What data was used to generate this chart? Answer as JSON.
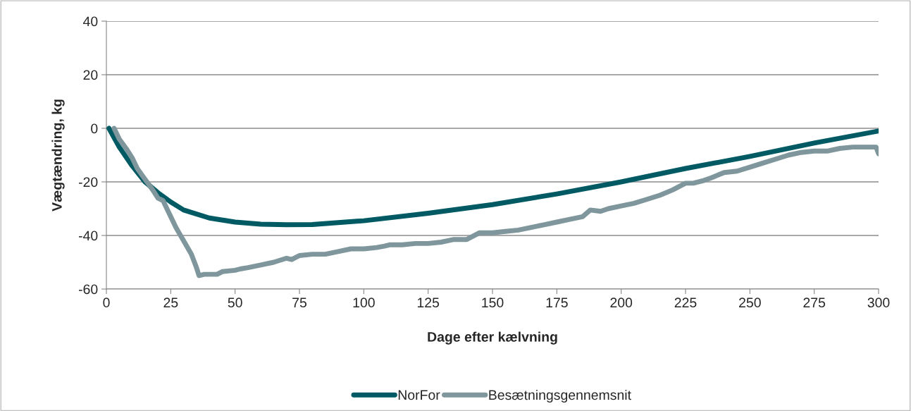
{
  "chart_data": {
    "type": "line",
    "xlabel": "Dage efter kælvning",
    "ylabel": "Vægtændring, kg",
    "xlim": [
      0,
      300
    ],
    "xticks": [
      0,
      25,
      50,
      75,
      100,
      125,
      150,
      175,
      200,
      225,
      250,
      275,
      300
    ],
    "ylim": [
      -60,
      40
    ],
    "yticks": [
      -60,
      -40,
      -20,
      0,
      20,
      40
    ],
    "grid": "y",
    "legend": "bottom",
    "marker": "none",
    "line_style": "solid",
    "series": [
      {
        "name": "NorFor",
        "color": "#005a64",
        "x": [
          1,
          5,
          10,
          15,
          20,
          25,
          30,
          40,
          50,
          60,
          70,
          80,
          100,
          125,
          150,
          175,
          200,
          225,
          250,
          275,
          300
        ],
        "values": [
          0,
          -7,
          -14,
          -20,
          -24,
          -27.5,
          -30.5,
          -33.5,
          -35,
          -35.8,
          -36,
          -35.9,
          -34.5,
          -31.7,
          -28.5,
          -24.5,
          -20,
          -15,
          -10.5,
          -5.5,
          -1
        ]
      },
      {
        "name": "Besætningsgennemsnit",
        "color": "#7f979c",
        "x": [
          3,
          5,
          8,
          10,
          12,
          15,
          18,
          20,
          22,
          24,
          27,
          30,
          33,
          35,
          36,
          38,
          40,
          43,
          45,
          50,
          52,
          55,
          60,
          65,
          70,
          72,
          75,
          80,
          85,
          90,
          95,
          100,
          105,
          108,
          110,
          115,
          120,
          125,
          130,
          135,
          140,
          145,
          150,
          155,
          160,
          165,
          170,
          175,
          180,
          185,
          188,
          192,
          195,
          200,
          205,
          210,
          215,
          220,
          225,
          228,
          232,
          235,
          240,
          245,
          250,
          255,
          260,
          265,
          270,
          275,
          280,
          285,
          290,
          295,
          299,
          300
        ],
        "values": [
          0,
          -4,
          -8,
          -11,
          -15,
          -19,
          -23,
          -26,
          -27,
          -31,
          -37,
          -42,
          -47,
          -52,
          -55,
          -54.5,
          -54.5,
          -54.5,
          -53.5,
          -53,
          -52.5,
          -52,
          -51,
          -50,
          -48.5,
          -49,
          -47.5,
          -47,
          -47,
          -46,
          -45,
          -45,
          -44.5,
          -44,
          -43.5,
          -43.5,
          -43,
          -43,
          -42.5,
          -41.5,
          -41.5,
          -39,
          -39,
          -38.5,
          -38,
          -37,
          -36,
          -35,
          -34,
          -33,
          -30.5,
          -31,
          -30,
          -29,
          -28,
          -26.5,
          -25,
          -23,
          -20.5,
          -20.5,
          -19.5,
          -18.5,
          -16.5,
          -16,
          -14.5,
          -13,
          -11.5,
          -10,
          -9,
          -8.5,
          -8.5,
          -7.5,
          -7,
          -7,
          -7,
          -9.5
        ]
      }
    ]
  }
}
